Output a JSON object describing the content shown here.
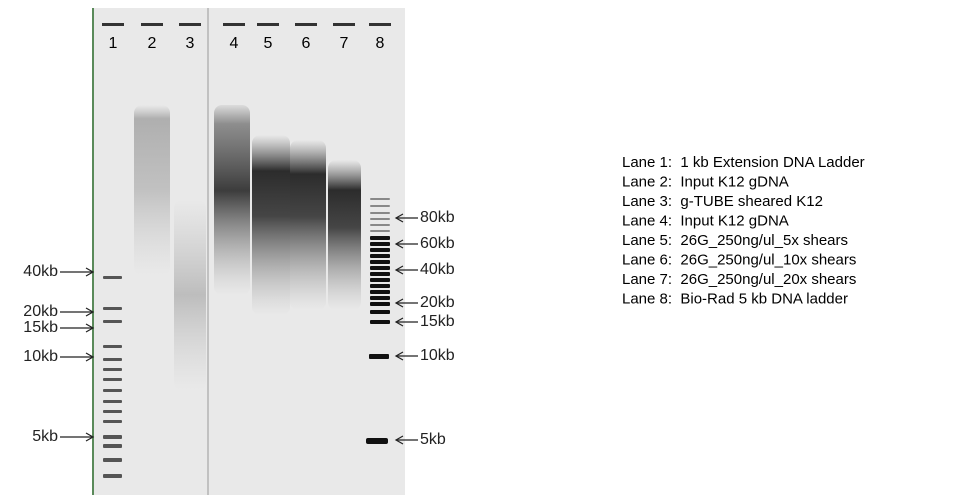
{
  "lanes": [
    "1",
    "2",
    "3",
    "4",
    "5",
    "6",
    "7",
    "8"
  ],
  "left_markers": [
    "40kb",
    "20kb",
    "15kb",
    "10kb",
    "5kb"
  ],
  "right_markers": [
    "80kb",
    "60kb",
    "40kb",
    "20kb",
    "15kb",
    "10kb",
    "5kb"
  ],
  "legend": [
    "Lane 1:  1 kb Extension DNA Ladder",
    "Lane 2:  Input K12 gDNA",
    "Lane 3:  g-TUBE sheared K12",
    "Lane 4:  Input K12 gDNA",
    "Lane 5:  26G_250ng/ul_5x shears",
    "Lane 6:  26G_250ng/ul_10x shears",
    "Lane 7:  26G_250ng/ul_20x shears",
    "Lane 8:  Bio-Rad 5 kb DNA ladder"
  ]
}
